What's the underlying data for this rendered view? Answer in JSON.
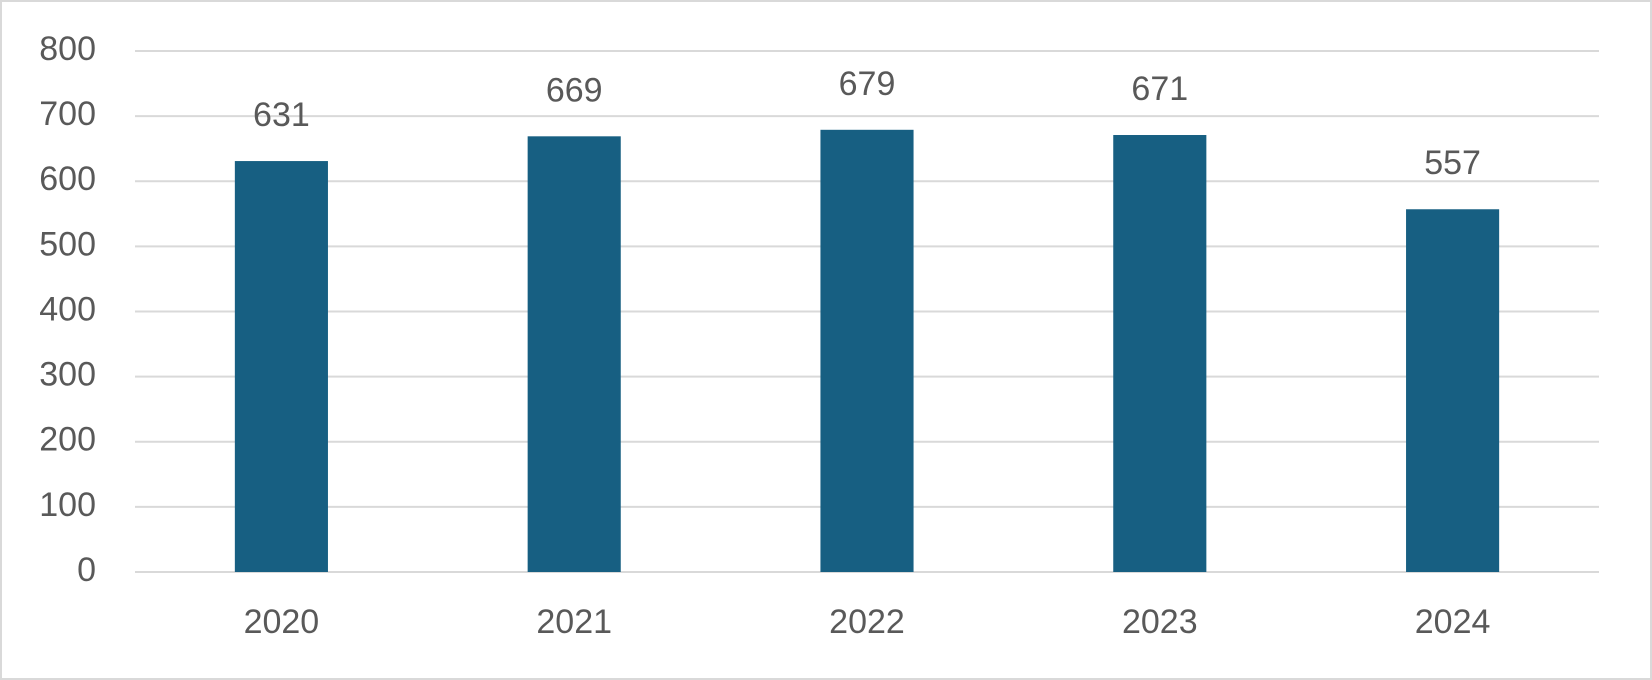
{
  "chart_data": {
    "type": "bar",
    "categories": [
      "2020",
      "2021",
      "2022",
      "2023",
      "2024"
    ],
    "values": [
      631,
      669,
      679,
      671,
      557
    ],
    "color": "#175f82",
    "ylim": [
      0,
      800
    ],
    "yticks": [
      0,
      100,
      200,
      300,
      400,
      500,
      600,
      700,
      800
    ],
    "grid": true,
    "data_labels": true
  }
}
